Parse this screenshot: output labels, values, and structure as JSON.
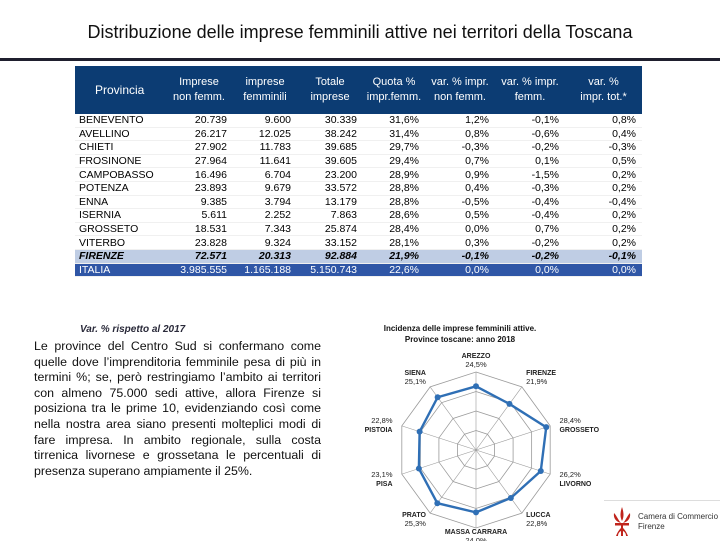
{
  "title": "Distribuzione delle imprese femminili attive nei territori della Toscana",
  "table": {
    "headers": [
      [
        "Provincia"
      ],
      [
        "Imprese",
        "non femm."
      ],
      [
        "imprese",
        "femminili"
      ],
      [
        "Totale",
        "imprese"
      ],
      [
        "Quota %",
        "impr.femm."
      ],
      [
        "var. % impr.",
        "non femm."
      ],
      [
        "var. % impr.",
        "femm."
      ],
      [
        "var. %",
        "impr. tot.*"
      ]
    ],
    "rows": [
      [
        "BENEVENTO",
        "20.739",
        "9.600",
        "30.339",
        "31,6%",
        "1,2%",
        "-0,1%",
        "0,8%"
      ],
      [
        "AVELLINO",
        "26.217",
        "12.025",
        "38.242",
        "31,4%",
        "0,8%",
        "-0,6%",
        "0,4%"
      ],
      [
        "CHIETI",
        "27.902",
        "11.783",
        "39.685",
        "29,7%",
        "-0,3%",
        "-0,2%",
        "-0,3%"
      ],
      [
        "FROSINONE",
        "27.964",
        "11.641",
        "39.605",
        "29,4%",
        "0,7%",
        "0,1%",
        "0,5%"
      ],
      [
        "CAMPOBASSO",
        "16.496",
        "6.704",
        "23.200",
        "28,9%",
        "0,9%",
        "-1,5%",
        "0,2%"
      ],
      [
        "POTENZA",
        "23.893",
        "9.679",
        "33.572",
        "28,8%",
        "0,4%",
        "-0,3%",
        "0,2%"
      ],
      [
        "ENNA",
        "9.385",
        "3.794",
        "13.179",
        "28,8%",
        "-0,5%",
        "-0,4%",
        "-0,4%"
      ],
      [
        "ISERNIA",
        "5.611",
        "2.252",
        "7.863",
        "28,6%",
        "0,5%",
        "-0,4%",
        "0,2%"
      ],
      [
        "GROSSETO",
        "18.531",
        "7.343",
        "25.874",
        "28,4%",
        "0,0%",
        "0,7%",
        "0,2%"
      ],
      [
        "VITERBO",
        "23.828",
        "9.324",
        "33.152",
        "28,1%",
        "0,3%",
        "-0,2%",
        "0,2%"
      ],
      [
        "FIRENZE",
        "72.571",
        "20.313",
        "92.884",
        "21,9%",
        "-0,1%",
        "-0,2%",
        "-0,1%"
      ],
      [
        "ITALIA",
        "3.985.555",
        "1.165.188",
        "5.150.743",
        "22,6%",
        "0,0%",
        "0,0%",
        "0,0%"
      ]
    ],
    "footnote": "Var. % rispetto al 2017"
  },
  "body_text": "Le province del Centro Sud si confermano come quelle dove l’imprenditoria femminile pesa di più in termini %; se, però restringiamo l’ambito ai territori con almeno 75.000 sedi attive, allora Firenze si posiziona tra le prime 10, evidenziando così come nella nostra area siano presenti molteplici modi di fare impresa. In ambito regionale, sulla costa tirrenica livornese e grossetana le percentuali di presenza superano ampiamente il 25%.",
  "chart_data": {
    "type": "radar",
    "title": "Incidenza delle imprese femminili attive.",
    "subtitle": "Province toscane: anno 2018",
    "categories": [
      "AREZZO",
      "FIRENZE",
      "GROSSETO",
      "LIVORNO",
      "LUCCA",
      "MASSA CARRARA",
      "PRATO",
      "PISA",
      "PISTOIA",
      "SIENA"
    ],
    "value_labels": [
      "24,5%",
      "21,9%",
      "28,4%",
      "26,2%",
      "22,8%",
      "24,0%",
      "25,3%",
      "23,1%",
      "22,8%",
      "25,1%"
    ],
    "values": [
      24.5,
      21.9,
      28.4,
      26.2,
      22.8,
      24.0,
      25.3,
      23.1,
      22.8,
      25.1
    ],
    "rlim": [
      0,
      30
    ],
    "series_color": "#2f6fb5",
    "grid_color": "#9a9a9a"
  },
  "logo": {
    "line1": "Camera di Commercio",
    "line2": "Firenze",
    "color": "#c0241c"
  }
}
